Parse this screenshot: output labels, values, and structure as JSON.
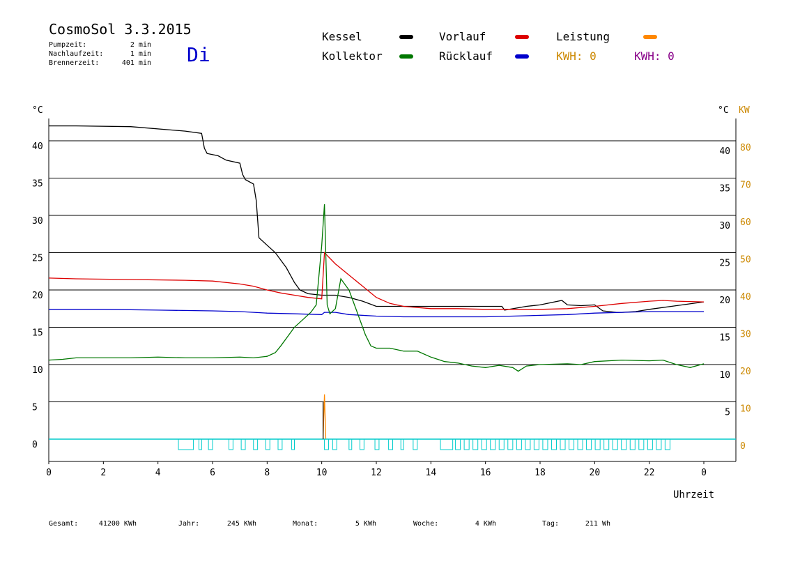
{
  "header": {
    "title": "CosmoSol 3.3.2015",
    "day": "Di",
    "info": [
      {
        "label": "Pumpzeit:",
        "value": "2 min"
      },
      {
        "label": "Nachlaufzeit:",
        "value": "1 min"
      },
      {
        "label": "Brennerzeit:",
        "value": "401 min"
      }
    ]
  },
  "legend": {
    "kessel": "Kessel",
    "kollektor": "Kollektor",
    "vorlauf": "Vorlauf",
    "ruecklauf": "Rücklauf",
    "leistung": "Leistung",
    "kwh_left": "KWH: 0",
    "kwh_right": "KWH: 0"
  },
  "axes": {
    "left_unit": "°C",
    "right_unit": "°C",
    "right_unit2": "KW",
    "xlabel": "Uhrzeit",
    "left_ticks": [
      "0",
      "5",
      "10",
      "15",
      "20",
      "25",
      "30",
      "35",
      "40"
    ],
    "right_ticks": [
      "5",
      "10",
      "15",
      "20",
      "25",
      "30",
      "35",
      "40"
    ],
    "kw_ticks": [
      "0",
      "10",
      "20",
      "30",
      "40",
      "50",
      "60",
      "70",
      "80"
    ],
    "x_ticks": [
      "0",
      "2",
      "4",
      "6",
      "8",
      "10",
      "12",
      "14",
      "16",
      "18",
      "20",
      "22",
      "0"
    ]
  },
  "footer": [
    {
      "label": "Gesamt:",
      "value": "41200 KWh"
    },
    {
      "label": "Jahr:",
      "value": "245 KWh"
    },
    {
      "label": "Monat:",
      "value": "5 KWh"
    },
    {
      "label": "Woche:",
      "value": "4 KWh"
    },
    {
      "label": "Tag:",
      "value": "211 Wh"
    }
  ],
  "colors": {
    "kessel": "#000000",
    "kollektor": "#007700",
    "vorlauf": "#dd0000",
    "ruecklauf": "#0000cc",
    "leistung": "#ff8800",
    "kwh_right": "#880088",
    "pump": "#00cccc",
    "day": "#0000cc",
    "kw_axis": "#cc8800"
  },
  "chart_data": {
    "type": "line",
    "xlabel": "Uhrzeit",
    "xlim": [
      0,
      24
    ],
    "ylim": [
      0,
      40
    ],
    "y2lim": [
      0,
      80
    ],
    "series": [
      {
        "name": "Kessel",
        "color": "#000000",
        "points": [
          [
            0,
            42
          ],
          [
            1,
            42
          ],
          [
            3,
            41.9
          ],
          [
            5,
            41.3
          ],
          [
            5.6,
            41
          ],
          [
            5.7,
            39
          ],
          [
            5.8,
            38.3
          ],
          [
            6.2,
            38
          ],
          [
            6.5,
            37.4
          ],
          [
            7,
            37
          ],
          [
            7.1,
            35.5
          ],
          [
            7.2,
            34.8
          ],
          [
            7.5,
            34.2
          ],
          [
            7.6,
            32
          ],
          [
            7.7,
            27
          ],
          [
            8,
            26
          ],
          [
            8.3,
            25
          ],
          [
            8.7,
            23
          ],
          [
            9,
            21
          ],
          [
            9.2,
            20
          ],
          [
            9.5,
            19.5
          ],
          [
            10,
            19.3
          ],
          [
            10.5,
            19.3
          ],
          [
            11,
            19
          ],
          [
            11.5,
            18.5
          ],
          [
            12,
            17.8
          ],
          [
            13,
            17.8
          ],
          [
            14,
            17.8
          ],
          [
            15,
            17.8
          ],
          [
            16,
            17.8
          ],
          [
            16.6,
            17.8
          ],
          [
            16.7,
            17.3
          ],
          [
            17.5,
            17.8
          ],
          [
            18,
            18
          ],
          [
            18.8,
            18.6
          ],
          [
            19,
            18
          ],
          [
            19.5,
            17.9
          ],
          [
            20,
            18
          ],
          [
            20.3,
            17.2
          ],
          [
            20.8,
            17
          ],
          [
            21,
            17
          ],
          [
            21.5,
            17.1
          ],
          [
            22,
            17.4
          ],
          [
            23,
            17.9
          ],
          [
            24,
            18.4
          ]
        ]
      },
      {
        "name": "Vorlauf",
        "color": "#dd0000",
        "points": [
          [
            0,
            21.6
          ],
          [
            1,
            21.5
          ],
          [
            3,
            21.4
          ],
          [
            5,
            21.3
          ],
          [
            6,
            21.2
          ],
          [
            7,
            20.8
          ],
          [
            7.5,
            20.5
          ],
          [
            8,
            20
          ],
          [
            8.5,
            19.6
          ],
          [
            9,
            19.3
          ],
          [
            9.5,
            19
          ],
          [
            10,
            18.8
          ],
          [
            10.1,
            25
          ],
          [
            10.5,
            23.5
          ],
          [
            11,
            22
          ],
          [
            11.5,
            20.5
          ],
          [
            12,
            19
          ],
          [
            12.5,
            18.2
          ],
          [
            13,
            17.8
          ],
          [
            14,
            17.5
          ],
          [
            15,
            17.5
          ],
          [
            16,
            17.4
          ],
          [
            17,
            17.4
          ],
          [
            18,
            17.4
          ],
          [
            19,
            17.5
          ],
          [
            20,
            17.8
          ],
          [
            21,
            18.2
          ],
          [
            22,
            18.5
          ],
          [
            22.5,
            18.6
          ],
          [
            23,
            18.5
          ],
          [
            24,
            18.4
          ]
        ]
      },
      {
        "name": "Rücklauf",
        "color": "#0000cc",
        "points": [
          [
            0,
            17.4
          ],
          [
            2,
            17.4
          ],
          [
            4,
            17.3
          ],
          [
            6,
            17.2
          ],
          [
            7,
            17.1
          ],
          [
            8,
            16.9
          ],
          [
            9,
            16.8
          ],
          [
            10,
            16.7
          ],
          [
            10.1,
            17
          ],
          [
            10.5,
            17
          ],
          [
            11,
            16.7
          ],
          [
            12,
            16.5
          ],
          [
            13,
            16.4
          ],
          [
            14,
            16.4
          ],
          [
            15,
            16.4
          ],
          [
            16,
            16.4
          ],
          [
            17,
            16.5
          ],
          [
            18,
            16.6
          ],
          [
            19,
            16.7
          ],
          [
            20,
            16.9
          ],
          [
            21,
            17
          ],
          [
            22,
            17.1
          ],
          [
            23,
            17.1
          ],
          [
            24,
            17.1
          ]
        ]
      },
      {
        "name": "Kollektor",
        "color": "#007700",
        "points": [
          [
            0,
            10.6
          ],
          [
            0.5,
            10.7
          ],
          [
            1,
            10.9
          ],
          [
            2,
            10.9
          ],
          [
            3,
            10.9
          ],
          [
            4,
            11
          ],
          [
            5,
            10.9
          ],
          [
            6,
            10.9
          ],
          [
            7,
            11
          ],
          [
            7.5,
            10.9
          ],
          [
            8,
            11.1
          ],
          [
            8.3,
            11.6
          ],
          [
            8.5,
            12.5
          ],
          [
            9,
            15
          ],
          [
            9.3,
            16
          ],
          [
            9.6,
            17
          ],
          [
            9.8,
            18
          ],
          [
            10,
            26
          ],
          [
            10.1,
            31.5
          ],
          [
            10.2,
            18
          ],
          [
            10.3,
            16.8
          ],
          [
            10.5,
            17.5
          ],
          [
            10.7,
            21.5
          ],
          [
            11,
            20
          ],
          [
            11.3,
            17
          ],
          [
            11.6,
            14
          ],
          [
            11.8,
            12.5
          ],
          [
            12,
            12.2
          ],
          [
            12.5,
            12.2
          ],
          [
            13,
            11.8
          ],
          [
            13.5,
            11.8
          ],
          [
            14,
            11
          ],
          [
            14.5,
            10.4
          ],
          [
            15,
            10.2
          ],
          [
            15.5,
            9.8
          ],
          [
            16,
            9.6
          ],
          [
            16.5,
            9.9
          ],
          [
            17,
            9.6
          ],
          [
            17.2,
            9.1
          ],
          [
            17.5,
            9.8
          ],
          [
            18,
            10
          ],
          [
            19,
            10.1
          ],
          [
            19.5,
            10
          ],
          [
            20,
            10.4
          ],
          [
            21,
            10.6
          ],
          [
            22,
            10.5
          ],
          [
            22.5,
            10.6
          ],
          [
            23,
            10
          ],
          [
            23.5,
            9.6
          ],
          [
            24,
            10.1
          ]
        ]
      },
      {
        "name": "Leistung",
        "color": "#ff8800",
        "points": [
          [
            10.05,
            0
          ],
          [
            10.1,
            6
          ],
          [
            10.15,
            0
          ]
        ]
      }
    ]
  }
}
